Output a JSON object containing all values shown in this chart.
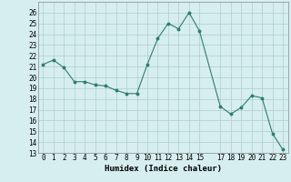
{
  "x": [
    0,
    1,
    2,
    3,
    4,
    5,
    6,
    7,
    8,
    9,
    10,
    11,
    12,
    13,
    14,
    15,
    17,
    18,
    19,
    20,
    21,
    22,
    23
  ],
  "y": [
    21.2,
    21.6,
    20.9,
    19.6,
    19.6,
    19.3,
    19.2,
    18.8,
    18.5,
    18.5,
    21.2,
    23.6,
    25.0,
    24.5,
    26.0,
    24.3,
    17.3,
    16.6,
    17.2,
    18.3,
    18.1,
    14.8,
    13.3
  ],
  "xlabel": "Humidex (Indice chaleur)",
  "xlim": [
    -0.5,
    23.5
  ],
  "ylim": [
    13,
    27
  ],
  "yticks": [
    13,
    14,
    15,
    16,
    17,
    18,
    19,
    20,
    21,
    22,
    23,
    24,
    25,
    26
  ],
  "xticks": [
    0,
    1,
    2,
    3,
    4,
    5,
    6,
    7,
    8,
    9,
    10,
    11,
    12,
    13,
    14,
    15,
    17,
    18,
    19,
    20,
    21,
    22,
    23
  ],
  "line_color": "#2e7d6e",
  "marker_color": "#2e7d6e",
  "bg_color": "#d6eeee",
  "grid_color": "#b0cccc",
  "label_fontsize": 6.5,
  "tick_fontsize": 5.5
}
